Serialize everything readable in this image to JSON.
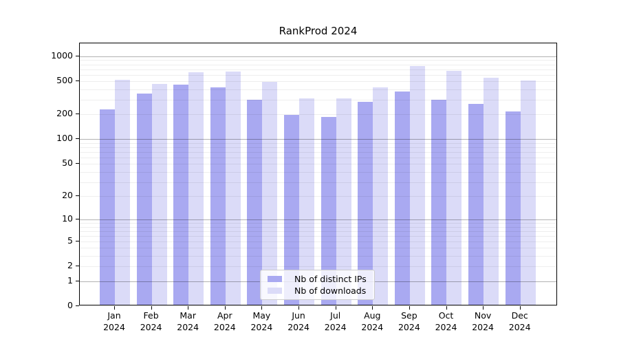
{
  "title": "RankProd 2024",
  "colors": {
    "ips_bar": "#a9a9f1",
    "downloads_bar": "#dbdbf8",
    "grid_minor": "rgba(0,0,0,0.065)",
    "grid_major": "rgba(0,0,0,0.30)",
    "axis": "#000000",
    "legend_border": "#cccccc"
  },
  "legend": {
    "items": [
      {
        "label": "Nb of distinct IPs",
        "color": "#a9a9f1"
      },
      {
        "label": "Nb of downloads",
        "color": "#dbdbf8"
      }
    ]
  },
  "chart_data": {
    "type": "bar",
    "title": "RankProd 2024",
    "categories": [
      "Jan",
      "Feb",
      "Mar",
      "Apr",
      "May",
      "Jun",
      "Jul",
      "Aug",
      "Sep",
      "Oct",
      "Nov",
      "Dec"
    ],
    "category_year": "2024",
    "series": [
      {
        "name": "Nb of distinct IPs",
        "color": "#a9a9f1",
        "values": [
          220,
          345,
          435,
          410,
          290,
          190,
          180,
          270,
          360,
          290,
          255,
          210
        ]
      },
      {
        "name": "Nb of downloads",
        "color": "#dbdbf8",
        "values": [
          500,
          450,
          615,
          630,
          470,
          300,
          300,
          410,
          730,
          640,
          530,
          495
        ]
      }
    ],
    "yscale": "log10(1+y)",
    "ylim": [
      0,
      1430
    ],
    "yticks": [
      0,
      1,
      2,
      5,
      10,
      20,
      50,
      100,
      200,
      500,
      1000
    ],
    "gridlines_major": [
      1,
      10,
      100,
      1000
    ],
    "gridlines_minor": [
      2,
      3,
      4,
      5,
      6,
      7,
      8,
      9,
      20,
      30,
      40,
      50,
      60,
      70,
      80,
      90,
      200,
      300,
      400,
      500,
      600,
      700,
      800,
      900
    ],
    "grid": true,
    "xlabel": "",
    "ylabel": "",
    "legend_position": "inside-bottom-center"
  }
}
